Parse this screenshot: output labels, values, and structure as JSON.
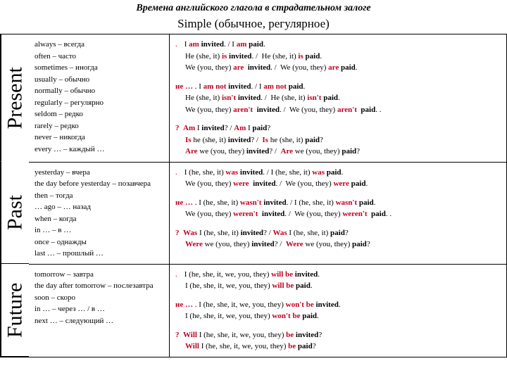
{
  "title": "Времена английского глагола в страдательном залоге",
  "subtitle": "Simple (обычное, регулярное)",
  "present": {
    "label": "Present",
    "markers": [
      "always – всегда",
      "often – часто",
      "sometimes – иногда",
      "usually – обычно",
      "normally – обычно",
      "regularly – регулярно",
      "seldom – редко",
      "rarely – редко",
      "never – никогда",
      "every … – каждый …"
    ]
  },
  "past": {
    "label": "Past",
    "markers": [
      "yesterday – вчера",
      "the day before yesterday – позавчера",
      "then – тогда",
      "… ago – … назад",
      "when – когда",
      "in … – в …",
      "once – однажды",
      "last … – прошлый …"
    ]
  },
  "future": {
    "label": "Future",
    "markers": [
      "tomorrow – завтра",
      "the day after tomorrow – послезавтра",
      "soon – скоро",
      "in … – через … / в …",
      "next … – следующий …"
    ]
  }
}
